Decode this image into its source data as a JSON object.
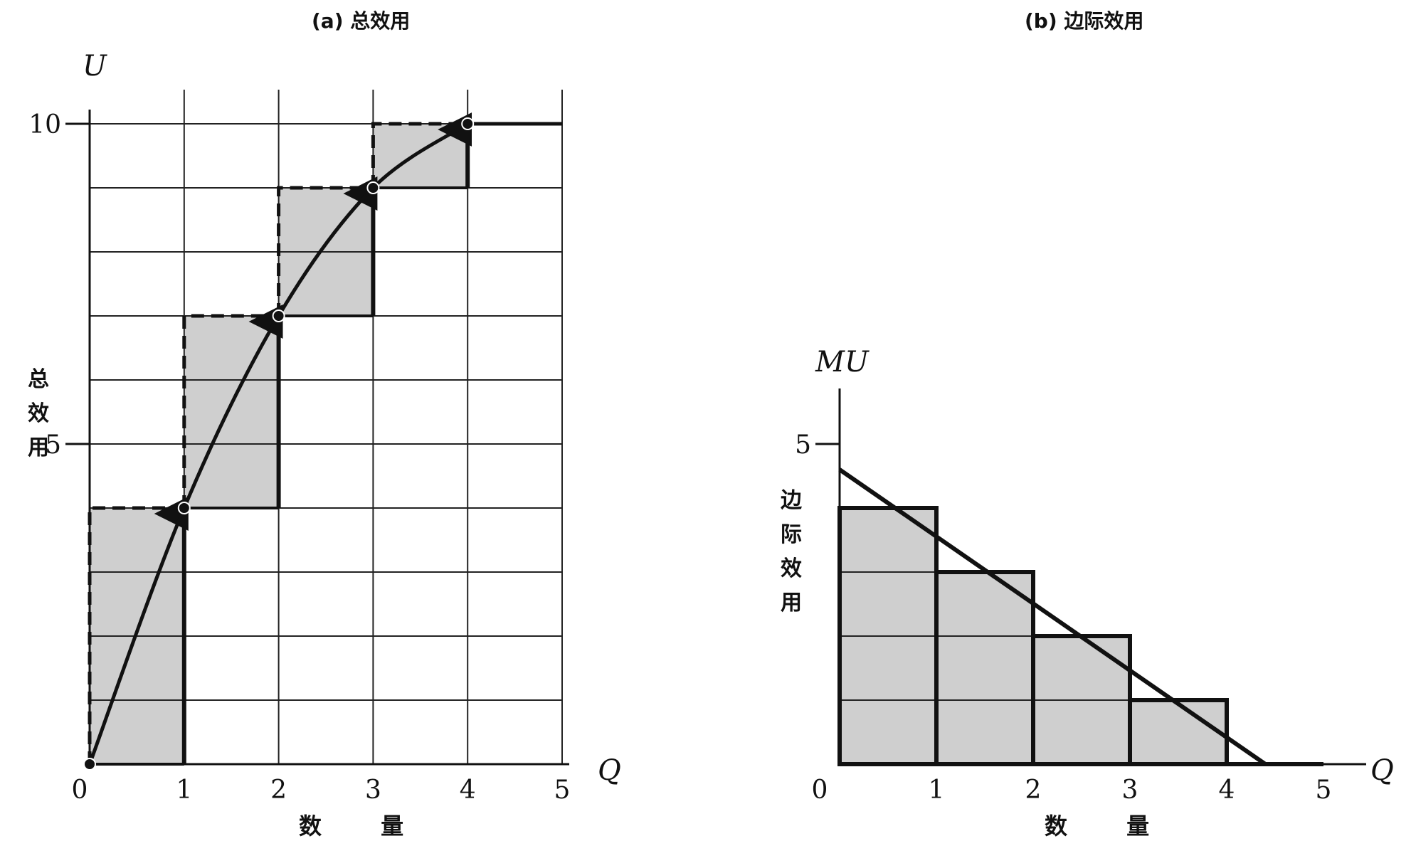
{
  "chart_data": [
    {
      "type": "line",
      "title": "(a) 总效用",
      "xlabel": "数 量",
      "ylabel": "总效用",
      "x_axis_symbol": "Q",
      "y_axis_symbol": "U",
      "x": [
        0,
        1,
        2,
        3,
        4,
        5
      ],
      "series": [
        {
          "values": [
            0,
            4,
            7,
            9,
            10,
            10
          ]
        }
      ],
      "steps": [
        {
          "q": 1,
          "from": 0,
          "to": 4
        },
        {
          "q": 2,
          "from": 4,
          "to": 7
        },
        {
          "q": 3,
          "from": 7,
          "to": 9
        },
        {
          "q": 4,
          "from": 9,
          "to": 10
        }
      ],
      "x_ticks": [
        "0",
        "1",
        "2",
        "3",
        "4",
        "5"
      ],
      "y_ticks": [
        "5",
        "10"
      ],
      "y_tick_values": [
        5,
        10
      ],
      "xlim": [
        0,
        5
      ],
      "ylim": [
        0,
        10
      ],
      "grid": true
    },
    {
      "type": "bar",
      "title": "(b) 边际效用",
      "xlabel": "数 量",
      "ylabel": "边际效用",
      "x_axis_symbol": "Q",
      "y_axis_symbol": "MU",
      "categories": [
        "1",
        "2",
        "3",
        "4",
        "5"
      ],
      "values": [
        4,
        3,
        2,
        1,
        0
      ],
      "line": {
        "x": [
          0,
          4.4
        ],
        "y": [
          4.6,
          0
        ]
      },
      "x_ticks": [
        "0",
        "1",
        "2",
        "3",
        "4",
        "5"
      ],
      "y_ticks": [
        "5"
      ],
      "y_tick_values": [
        5
      ],
      "xlim": [
        0,
        5
      ],
      "ylim": [
        0,
        5
      ],
      "grid": true
    }
  ],
  "colors": {
    "ink": "#111111",
    "fill": "#cfcfcf",
    "grid": "#222222"
  }
}
